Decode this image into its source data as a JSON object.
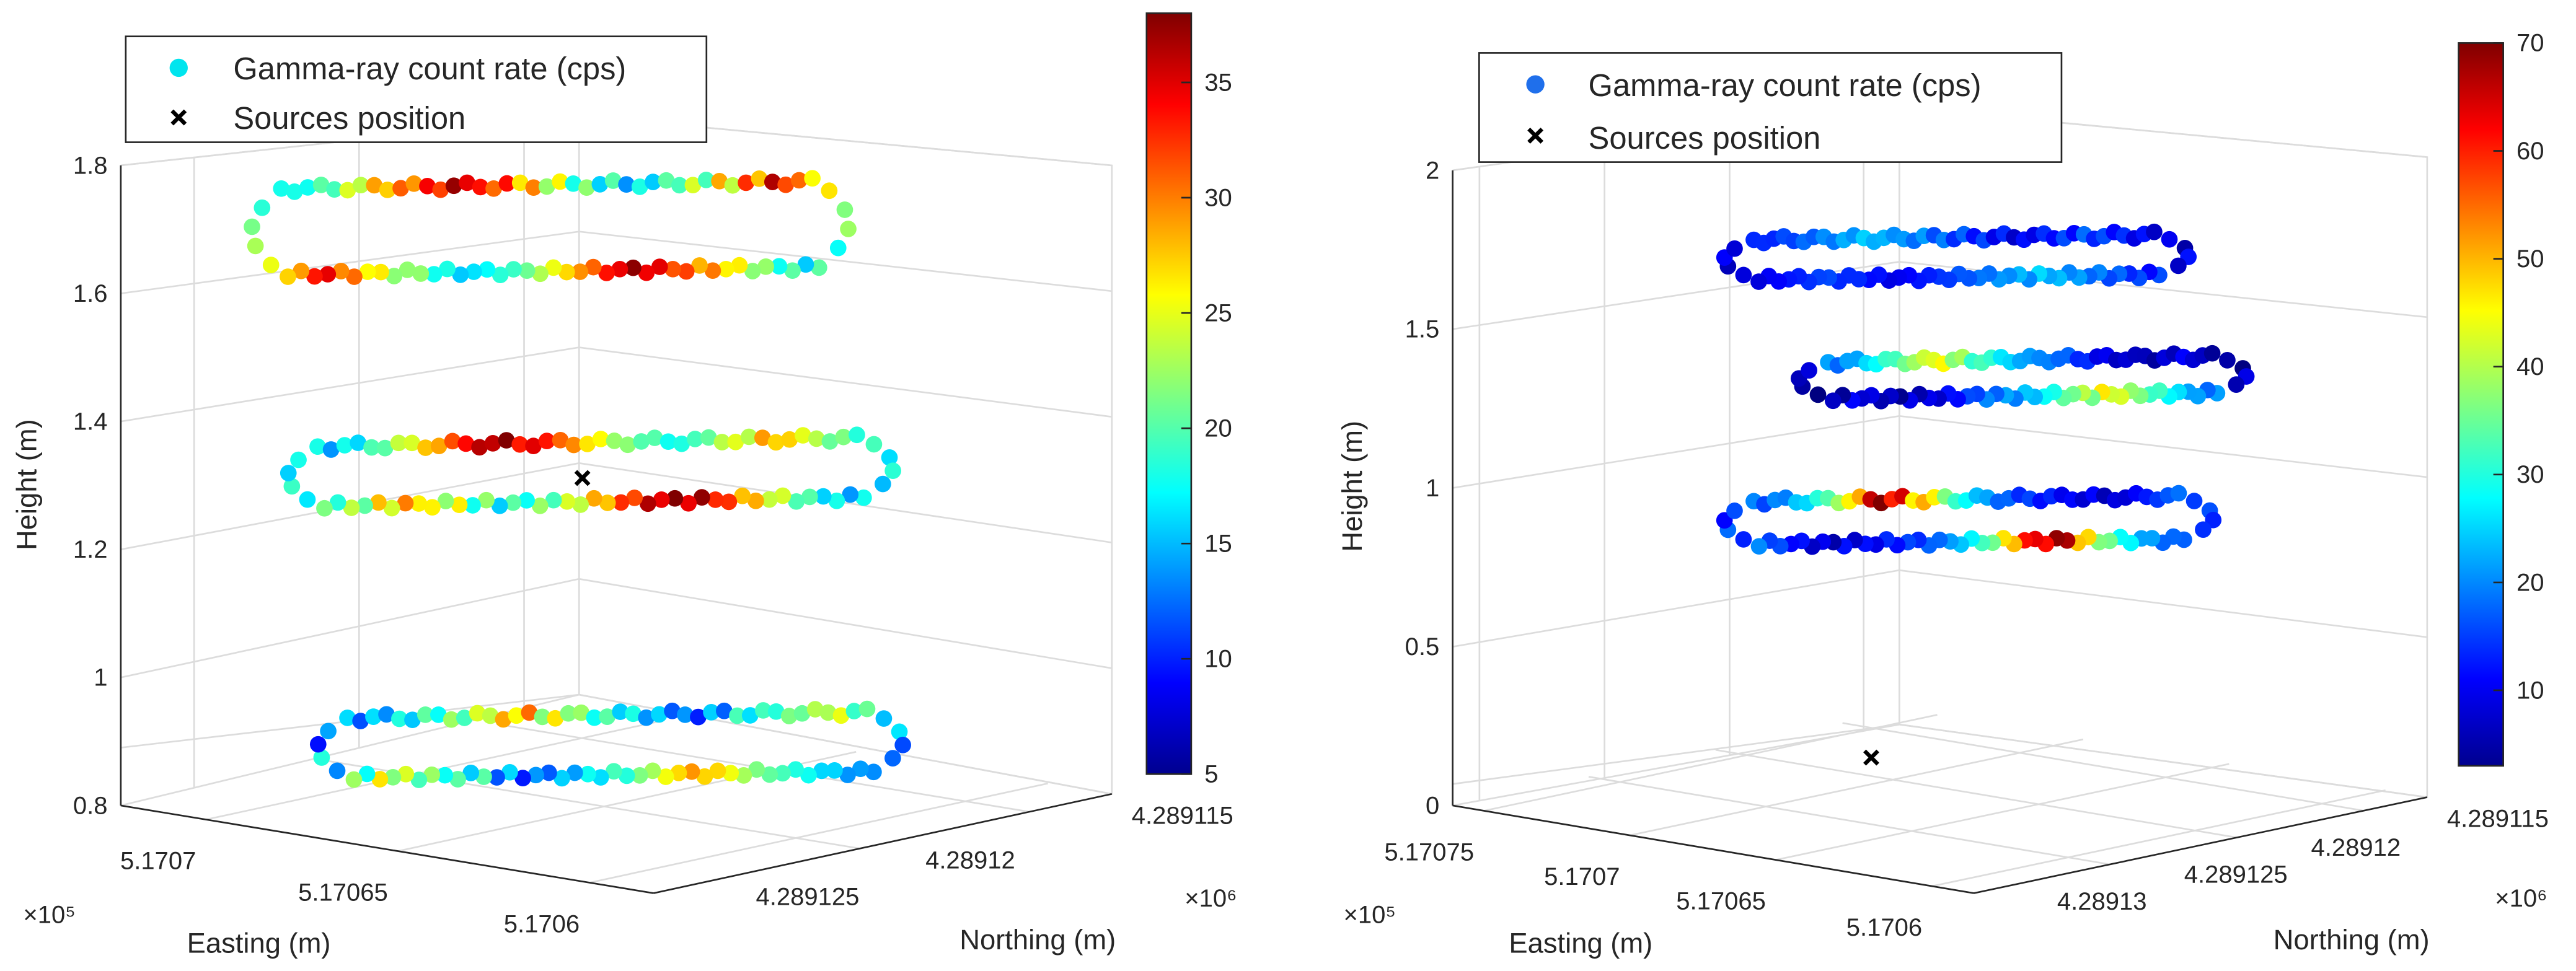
{
  "chart_data": [
    {
      "type": "scatter",
      "title": "",
      "xlabel": "Easting (m)",
      "ylabel": "Northing (m)",
      "zlabel": "Height (m)",
      "x_exponent": "×10⁵",
      "y_exponent": "×10⁶",
      "x_ticks": [
        "5.1707",
        "5.17065",
        "5.1706"
      ],
      "y_ticks": [
        "4.289125",
        "4.28912",
        "4.289115"
      ],
      "z_ticks": [
        "0.8",
        "1",
        "1.2",
        "1.4",
        "1.6",
        "1.8"
      ],
      "zlim": [
        0.8,
        1.8
      ],
      "colorbar": {
        "ticks": [
          "5",
          "10",
          "15",
          "20",
          "25",
          "30",
          "35"
        ],
        "range": [
          5,
          38
        ],
        "colormap": "jet"
      },
      "legend": {
        "entries": [
          "Gamma-ray count rate (cps)",
          "Sources position"
        ],
        "placement": "top-left",
        "marker_color": "#00e5ee"
      },
      "grid": true,
      "series": [
        {
          "name": "Gamma-ray count rate (cps)",
          "layers": [
            {
              "height": 1.7,
              "value_profile": [
                18,
                20,
                24,
                28,
                30,
                33,
                36,
                32,
                28,
                24,
                20,
                18,
                16,
                18,
                22,
                26,
                30,
                34,
                28,
                24,
                20,
                17
              ]
            },
            {
              "height": 1.3,
              "value_profile": [
                16,
                18,
                22,
                26,
                30,
                35,
                37,
                34,
                30,
                26,
                22,
                20,
                18,
                20,
                24,
                28,
                26,
                22,
                20,
                18,
                17,
                16
              ]
            },
            {
              "height": 0.88,
              "value_profile": [
                14,
                16,
                18,
                20,
                22,
                26,
                28,
                24,
                20,
                18,
                16,
                14,
                12,
                14,
                18,
                20,
                22,
                24,
                20,
                16,
                12,
                8
              ]
            }
          ]
        },
        {
          "name": "Sources position",
          "points": [
            {
              "height": 1.3
            }
          ]
        }
      ]
    },
    {
      "type": "scatter",
      "title": "",
      "xlabel": "Easting (m)",
      "ylabel": "Northing (m)",
      "zlabel": "Height (m)",
      "x_exponent": "×10⁵",
      "y_exponent": "×10⁶",
      "x_ticks": [
        "5.17075",
        "5.1707",
        "5.17065",
        "5.1706"
      ],
      "y_ticks": [
        "4.28913",
        "4.289125",
        "4.28912",
        "4.289115"
      ],
      "z_ticks": [
        "0",
        "0.5",
        "1",
        "1.5",
        "2"
      ],
      "zlim": [
        0,
        2
      ],
      "colorbar": {
        "ticks": [
          "10",
          "20",
          "30",
          "40",
          "50",
          "60",
          "70"
        ],
        "range": [
          3,
          70
        ],
        "colormap": "jet"
      },
      "legend": {
        "entries": [
          "Gamma-ray count rate (cps)",
          "Sources position"
        ],
        "placement": "top-left",
        "marker_color": "#1f6feb"
      },
      "grid": true,
      "series": [
        {
          "name": "Gamma-ray count rate (cps)",
          "layers": [
            {
              "height": 1.7,
              "value_profile": [
                14,
                16,
                18,
                20,
                22,
                24,
                22,
                20,
                18,
                16,
                14,
                12,
                10,
                12,
                14,
                16,
                14,
                12,
                10,
                8,
                10,
                12
              ]
            },
            {
              "height": 1.3,
              "value_profile": [
                20,
                24,
                30,
                34,
                40,
                44,
                38,
                32,
                26,
                22,
                20,
                18,
                14,
                10,
                8,
                6,
                8,
                10,
                6,
                4,
                8,
                12
              ]
            },
            {
              "height": 0.95,
              "value_profile": [
                18,
                22,
                28,
                36,
                48,
                68,
                62,
                48,
                34,
                26,
                20,
                16,
                14,
                12,
                10,
                8,
                10,
                14,
                18,
                16,
                14,
                12
              ]
            }
          ]
        },
        {
          "name": "Sources position",
          "points": [
            {
              "height": 0.15
            }
          ]
        }
      ]
    }
  ]
}
